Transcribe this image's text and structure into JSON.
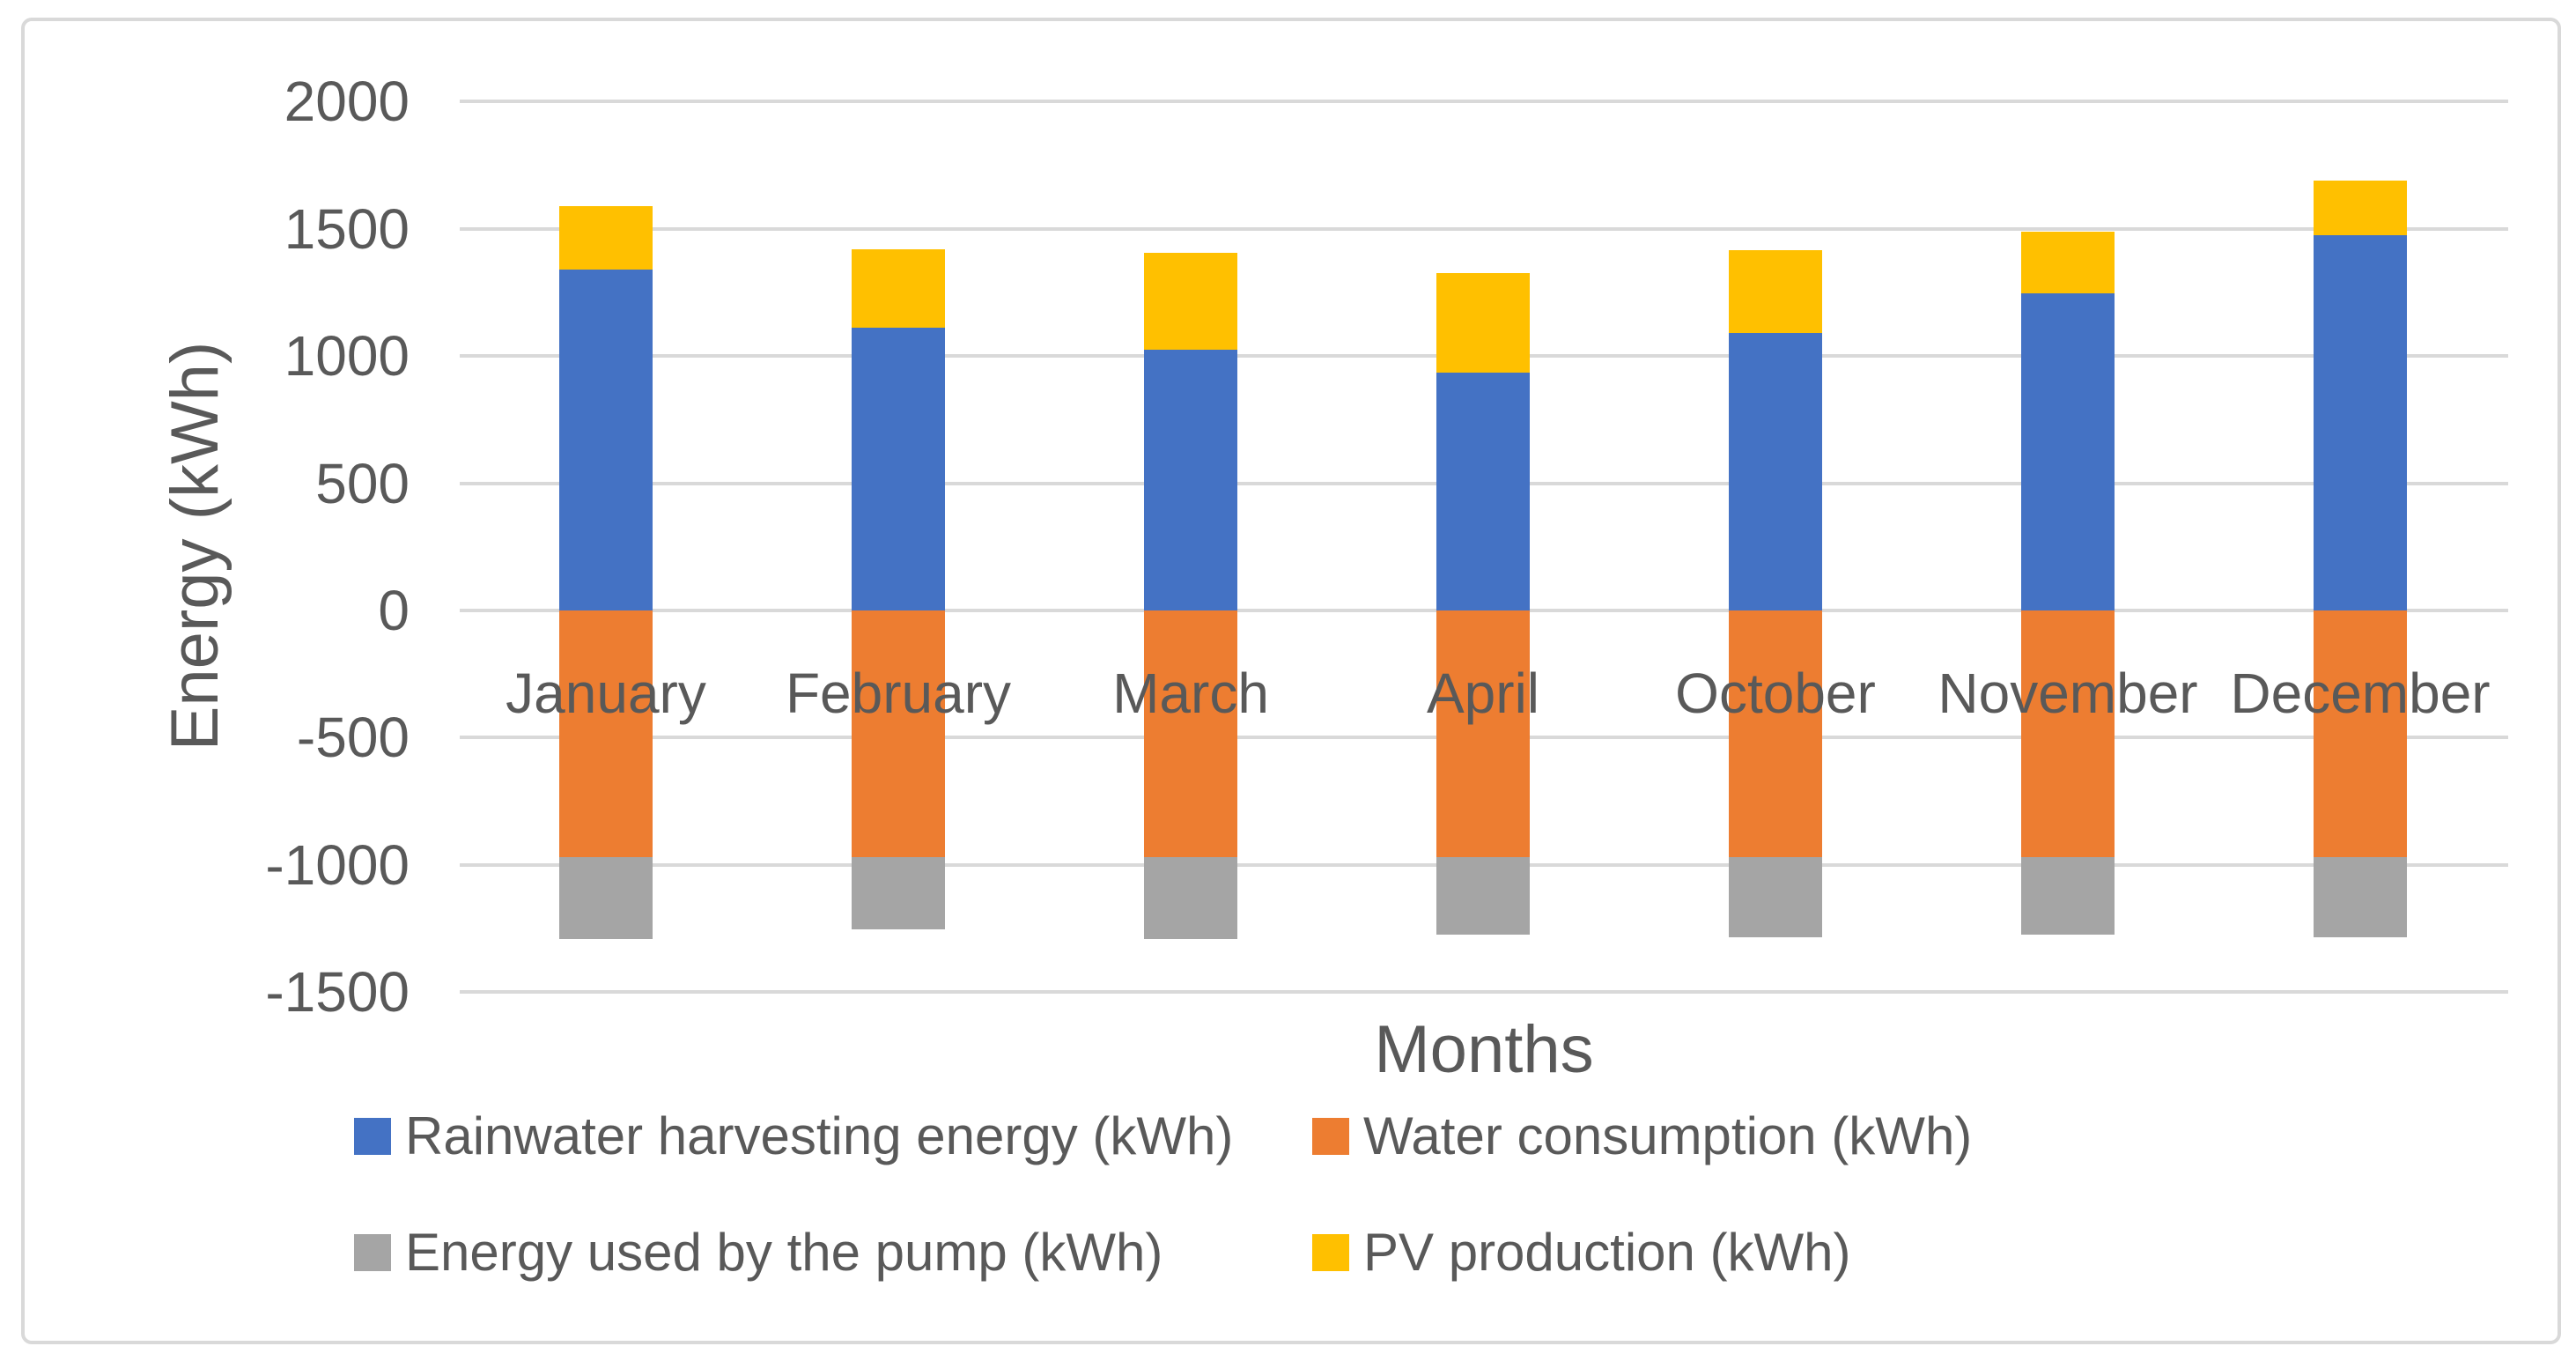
{
  "chart_data": {
    "type": "bar",
    "stacked": true,
    "title": "",
    "xlabel": "Months",
    "ylabel": "Energy (kWh)",
    "ylim": [
      -1500,
      2000
    ],
    "ytick_step": 500,
    "y_tick_labels": [
      "2000",
      "1500",
      "1000",
      "500",
      "0",
      "-500",
      "-1000",
      "-1500"
    ],
    "grid": true,
    "legend_position": "bottom",
    "categories": [
      "January",
      "February",
      "March",
      "April",
      "October",
      "November",
      "December"
    ],
    "series": [
      {
        "name": "Rainwater harvesting energy (kWh)",
        "color": "#4472C4",
        "values": [
          1340,
          1110,
          1025,
          935,
          1090,
          1245,
          1475
        ]
      },
      {
        "name": "Water consumption (kWh)",
        "color": "#ED7D31",
        "values": [
          -970,
          -970,
          -970,
          -970,
          -970,
          -970,
          -970
        ]
      },
      {
        "name": "Energy used by the pump (kWh)",
        "color": "#A5A5A5",
        "values": [
          -320,
          -285,
          -320,
          -305,
          -315,
          -305,
          -315
        ]
      },
      {
        "name": "PV production (kWh)",
        "color": "#FFC000",
        "values": [
          250,
          310,
          380,
          390,
          325,
          245,
          215
        ]
      }
    ],
    "colors": {
      "gridline": "#D9D9D9",
      "text": "#595959",
      "border": "#D9D9D9",
      "background": "#FFFFFF"
    }
  }
}
